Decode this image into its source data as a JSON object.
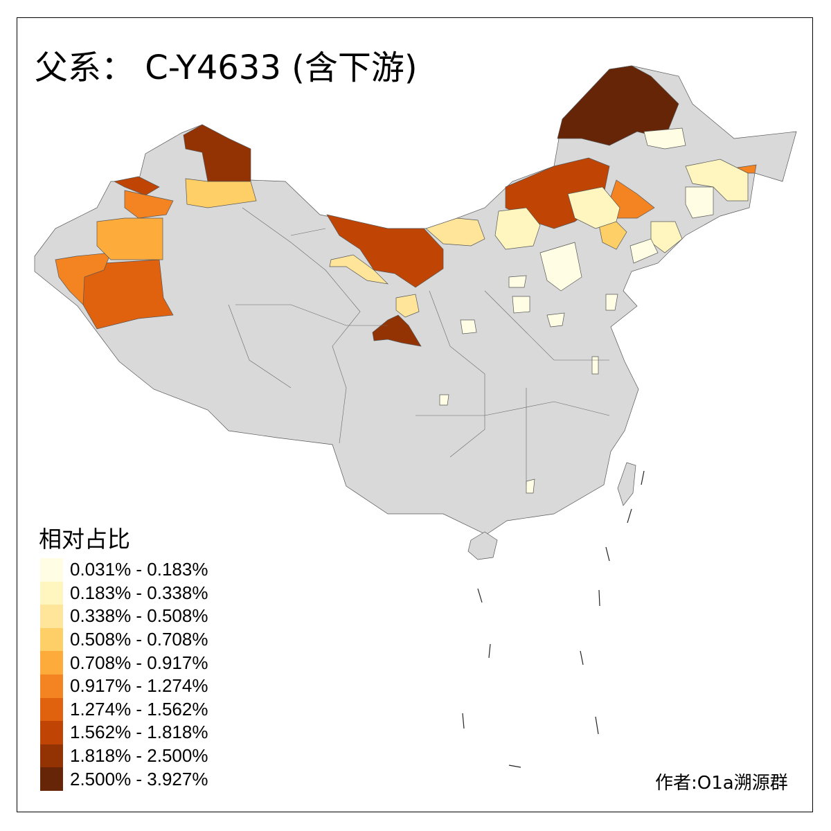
{
  "title": "父系： C-Y4633 (含下游)",
  "legend": {
    "title": "相对占比",
    "items": [
      {
        "label": "0.031% - 0.183%",
        "color": "#FFFDE4"
      },
      {
        "label": "0.183% - 0.338%",
        "color": "#FFF5BE"
      },
      {
        "label": "0.338% - 0.508%",
        "color": "#FEE59A"
      },
      {
        "label": "0.508% - 0.708%",
        "color": "#FECF66"
      },
      {
        "label": "0.708% - 0.917%",
        "color": "#FDAC3C"
      },
      {
        "label": "0.917% - 1.274%",
        "color": "#F48422"
      },
      {
        "label": "1.274% - 1.562%",
        "color": "#E0620F"
      },
      {
        "label": "1.562% - 1.818%",
        "color": "#C04504"
      },
      {
        "label": "1.818% - 2.500%",
        "color": "#933203"
      },
      {
        "label": "2.500% - 3.927%",
        "color": "#662506"
      }
    ]
  },
  "no_data_color": "#D9D9D9",
  "author": "作者:O1a溯源群"
}
